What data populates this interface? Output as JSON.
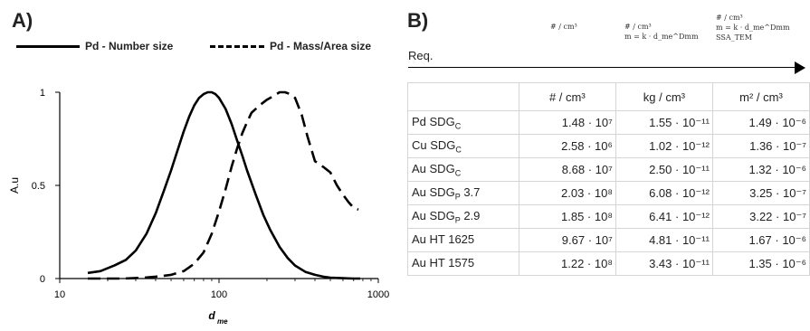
{
  "panels": {
    "a_label": "A)",
    "b_label": "B)"
  },
  "legend": {
    "solid_label": "Pd - Number size",
    "dashed_label": "Pd - Mass/Area size"
  },
  "chart_data": {
    "type": "line",
    "xscale": "log",
    "xlim": [
      10,
      1000
    ],
    "ylim": [
      0,
      1
    ],
    "xticks": [
      "10",
      "100",
      "1000"
    ],
    "yticks": [
      "0",
      "0.5",
      "1"
    ],
    "xlabel_main": "d",
    "xlabel_sub": "me",
    "ylabel": "A.u",
    "series": [
      {
        "name": "Pd - Number size",
        "style": "solid",
        "color": "#000000",
        "x": [
          15,
          18,
          22,
          26,
          30,
          35,
          40,
          45,
          50,
          55,
          60,
          65,
          70,
          75,
          80,
          85,
          90,
          95,
          100,
          110,
          120,
          130,
          140,
          150,
          170,
          190,
          210,
          240,
          270,
          300,
          350,
          400,
          450,
          500,
          600,
          700,
          770
        ],
        "y": [
          0.03,
          0.04,
          0.07,
          0.1,
          0.15,
          0.24,
          0.35,
          0.47,
          0.58,
          0.69,
          0.79,
          0.87,
          0.93,
          0.97,
          0.99,
          1.0,
          1.0,
          0.99,
          0.97,
          0.91,
          0.83,
          0.74,
          0.66,
          0.58,
          0.45,
          0.34,
          0.26,
          0.17,
          0.11,
          0.07,
          0.035,
          0.02,
          0.01,
          0.005,
          0.002,
          0.0,
          0.0
        ]
      },
      {
        "name": "Pd - Mass/Area size",
        "style": "dashed",
        "color": "#000000",
        "x": [
          15,
          20,
          25,
          30,
          35,
          40,
          45,
          50,
          55,
          60,
          65,
          70,
          80,
          90,
          100,
          110,
          120,
          130,
          140,
          150,
          160,
          180,
          200,
          220,
          240,
          260,
          280,
          300,
          330,
          360,
          400,
          450,
          500,
          550,
          600,
          650,
          700,
          750
        ],
        "y": [
          0.0,
          0.0,
          0.0,
          0.003,
          0.006,
          0.01,
          0.015,
          0.02,
          0.03,
          0.04,
          0.06,
          0.08,
          0.14,
          0.24,
          0.36,
          0.48,
          0.6,
          0.7,
          0.78,
          0.84,
          0.89,
          0.93,
          0.96,
          0.98,
          1.0,
          1.0,
          0.99,
          0.97,
          0.88,
          0.76,
          0.63,
          0.6,
          0.57,
          0.5,
          0.45,
          0.41,
          0.38,
          0.37
        ]
      }
    ]
  },
  "table": {
    "req_label": "Req.",
    "header_notes": [
      {
        "lines": [
          "# / cm³"
        ]
      },
      {
        "lines": [
          "# / cm³",
          "m = k · d_me^Dmm"
        ]
      },
      {
        "lines": [
          "# / cm³",
          "m = k · d_me^Dmm",
          "SSA_TEM"
        ]
      }
    ],
    "columns": [
      "# / cm³",
      "kg / cm³",
      "m² / cm³"
    ],
    "rows": [
      {
        "label": "Pd SDG",
        "sub": "C",
        "suffix": "",
        "values": [
          "1.48 · 10⁷",
          "1.55 · 10⁻¹¹",
          "1.49 · 10⁻⁶"
        ]
      },
      {
        "label": "Cu  SDG",
        "sub": "C",
        "suffix": "",
        "values": [
          "2.58 · 10⁶",
          "1.02 · 10⁻¹²",
          "1.36 · 10⁻⁷"
        ]
      },
      {
        "label": "Au SDG",
        "sub": "C",
        "suffix": "",
        "values": [
          "8.68 · 10⁷",
          "2.50 · 10⁻¹¹",
          "1.32 · 10⁻⁶"
        ]
      },
      {
        "label": "Au SDG",
        "sub": "P",
        "suffix": " 3.7",
        "values": [
          "2.03 · 10⁸",
          "6.08 · 10⁻¹²",
          "3.25 · 10⁻⁷"
        ]
      },
      {
        "label": "Au SDG",
        "sub": "P",
        "suffix": " 2.9",
        "values": [
          "1.85 · 10⁸",
          "6.41 · 10⁻¹²",
          "3.22 · 10⁻⁷"
        ]
      },
      {
        "label": "Au HT 1625",
        "sub": "",
        "suffix": "",
        "values": [
          "9.67 · 10⁷",
          "4.81 · 10⁻¹¹",
          "1.67 · 10⁻⁶"
        ]
      },
      {
        "label": "Au HT 1575",
        "sub": "",
        "suffix": "",
        "values": [
          "1.22 · 10⁸",
          "3.43 · 10⁻¹¹",
          "1.35 · 10⁻⁶"
        ]
      }
    ]
  }
}
